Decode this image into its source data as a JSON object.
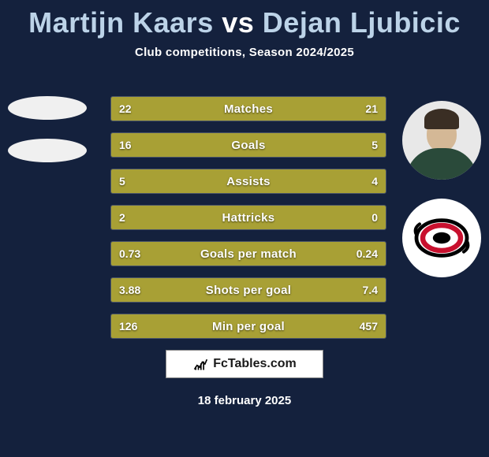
{
  "title": {
    "player1": "Martijn Kaars",
    "vs": "vs",
    "player2": "Dejan Ljubicic",
    "color_players": "#bcd3e8",
    "color_vs": "#ffffff",
    "fontsize": 36
  },
  "subtitle": {
    "text": "Club competitions, Season 2024/2025",
    "color": "#ffffff",
    "fontsize": 15
  },
  "background_color": "#14213d",
  "bar_color": "#a8a035",
  "row_border_color": "#4a5568",
  "row_bg_color": "#1a2a4a",
  "text_color": "#ffffff",
  "rows": [
    {
      "label": "Matches",
      "left": "22",
      "right": "21",
      "left_pct": 51,
      "right_pct": 49
    },
    {
      "label": "Goals",
      "left": "16",
      "right": "5",
      "left_pct": 76,
      "right_pct": 24
    },
    {
      "label": "Assists",
      "left": "5",
      "right": "4",
      "left_pct": 56,
      "right_pct": 44
    },
    {
      "label": "Hattricks",
      "left": "2",
      "right": "0",
      "left_pct": 100,
      "right_pct": 0
    },
    {
      "label": "Goals per match",
      "left": "0.73",
      "right": "0.24",
      "left_pct": 75,
      "right_pct": 25
    },
    {
      "label": "Shots per goal",
      "left": "3.88",
      "right": "7.4",
      "left_pct": 34,
      "right_pct": 66
    },
    {
      "label": "Min per goal",
      "left": "126",
      "right": "457",
      "left_pct": 22,
      "right_pct": 78
    }
  ],
  "footer": {
    "site": "FcTables.com",
    "date": "18 february 2025"
  },
  "avatars": {
    "right1_type": "portrait",
    "right2_type": "hurricane-logo"
  }
}
